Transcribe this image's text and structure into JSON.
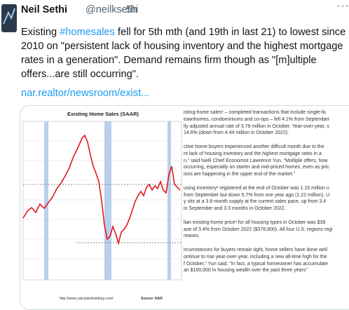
{
  "header": {
    "name": "Neil Sethi",
    "handle": "@neilksethi",
    "separator": "·",
    "time": "5h",
    "more": "···"
  },
  "tweet": {
    "first_line": {
      "pre": "Existing ",
      "hashtag": "#homesales",
      "post": " fell for 5th mth (and 19th in last 21) to lowest since"
    },
    "lines": [
      "2010 on \"persistent lack of housing inventory and the highest mortgage",
      "rates in a generation\". Demand remains firm though as \"[m]ultiple",
      "offers...are still occurring\"."
    ],
    "link": "nar.realtor/newsroom/exist..."
  },
  "image": {
    "chart_title": "Existing Home Sales (SAAR)",
    "chart_url": "http://www.calculatedriskblog.com/",
    "chart_source": "Source: NAR",
    "article_lines": [
      "isting-home sales¹ – completed transactions that include single-fa",
      "townhomes, condominiums and co-ops – fell 4.1% from September",
      "lly adjusted annual rate of 3.79 million in October. Year-over-year, s",
      "14.6% (down from 4.44 million in October 2022).",
      "",
      "ctive home buyers experienced another difficult month due to the",
      "nt lack of housing inventory and the highest mortgage rates in a",
      "n,\" said NAR Chief Economist Lawrence Yun. \"Multiple offers, how",
      "occurring, especially on starter and mid-priced homes, even as pric",
      "ions are happening in the upper end of the market.\"",
      "",
      "using inventory² registered at the end of October was 1.15 million u",
      "from September but down 5.7% from one year ago (1.22 million). U",
      "y sits at a 3.6-month supply at the current sales pace, up from 3.4",
      "in September and 3.3 months in October 2022.",
      "",
      "lian existing-home price³ for all housing types in October was $39",
      "ase of 3.4% from October 2022 ($378,800). All four U.S. regions regi",
      "reases.",
      "",
      "ircumstances for buyers remain tight, home sellers have done well",
      "ontinue to rise year-over-year, including a new all-time high for the",
      "f October,\" Yun said. \"In fact, a typical homeowner has accumulate",
      "an $100,000 in housing wealth over the past three years\""
    ]
  }
}
